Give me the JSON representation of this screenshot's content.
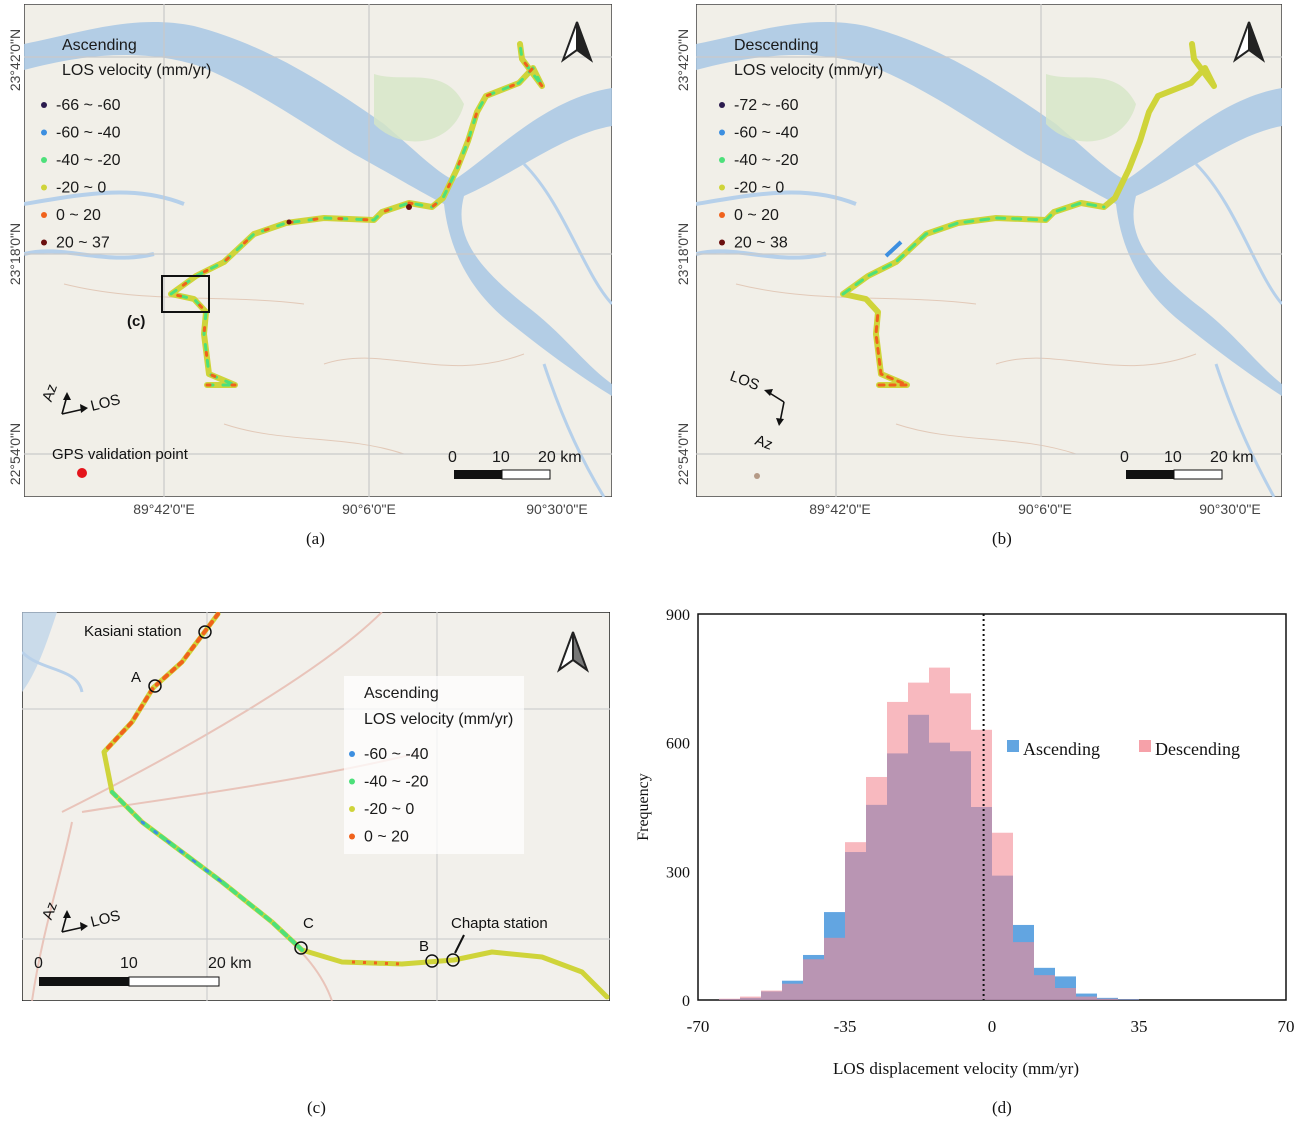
{
  "panel_a": {
    "caption": "(a)",
    "legend_title_1": "Ascending",
    "legend_title_2": "LOS velocity (mm/yr)",
    "legend": [
      {
        "label": "-66 ~ -60",
        "color": "#2b1b4e"
      },
      {
        "label": "-60 ~ -40",
        "color": "#3d8fe0"
      },
      {
        "label": "-40 ~ -20",
        "color": "#4de07a"
      },
      {
        "label": "-20 ~ 0",
        "color": "#cfd43a"
      },
      {
        "label": "0 ~ 20",
        "color": "#f0621c"
      },
      {
        "label": "20 ~ 37",
        "color": "#6b1010"
      }
    ],
    "lat_labels": [
      "23°42'0\"N",
      "23°18'0\"N",
      "22°54'0\"N"
    ],
    "lon_labels": [
      "89°42'0\"E",
      "90°6'0\"E",
      "90°30'0\"E"
    ],
    "inset_label": "(c)",
    "az_label": "Az",
    "los_label": "LOS",
    "gps_label": "GPS validation point",
    "scale": [
      "0",
      "10",
      "20 km"
    ]
  },
  "panel_b": {
    "caption": "(b)",
    "legend_title_1": "Descending",
    "legend_title_2": "LOS velocity (mm/yr)",
    "legend": [
      {
        "label": "-72 ~ -60",
        "color": "#2b1b4e"
      },
      {
        "label": "-60 ~ -40",
        "color": "#3d8fe0"
      },
      {
        "label": "-40 ~ -20",
        "color": "#4de07a"
      },
      {
        "label": "-20 ~ 0",
        "color": "#cfd43a"
      },
      {
        "label": "0 ~ 20",
        "color": "#f0621c"
      },
      {
        "label": "20 ~ 38",
        "color": "#6b1010"
      }
    ],
    "lat_labels": [
      "23°42'0\"N",
      "23°18'0\"N",
      "22°54'0\"N"
    ],
    "lon_labels": [
      "89°42'0\"E",
      "90°6'0\"E",
      "90°30'0\"E"
    ],
    "az_label": "Az",
    "los_label": "LOS",
    "scale": [
      "0",
      "10",
      "20 km"
    ]
  },
  "panel_c": {
    "caption": "(c)",
    "legend_title_1": "Ascending",
    "legend_title_2": "LOS velocity (mm/yr)",
    "legend": [
      {
        "label": "-60 ~ -40",
        "color": "#3d8fe0"
      },
      {
        "label": "-40 ~ -20",
        "color": "#4de07a"
      },
      {
        "label": "-20 ~  0",
        "color": "#cfd43a"
      },
      {
        "label": "0 ~ 20",
        "color": "#f0621c"
      }
    ],
    "kasiani_label": "Kasiani station",
    "chapta_label": "Chapta station",
    "point_a": "A",
    "point_b": "B",
    "point_c": "C",
    "az_label": "Az",
    "los_label": "LOS",
    "scale": [
      "0",
      "10",
      "20 km"
    ]
  },
  "panel_d": {
    "caption": "(d)",
    "ylabel": "Frequency",
    "xlabel": "LOS displacement  velocity  (mm/yr)",
    "series_1": "Ascending",
    "series_2": "Descending"
  },
  "chart_data": {
    "type": "bar",
    "xlabel": "LOS displacement  velocity  (mm/yr)",
    "ylabel": "Frequency",
    "xlim": [
      -70,
      70
    ],
    "ylim": [
      0,
      900
    ],
    "xticks": [
      "-70",
      "-35",
      "0",
      "35",
      "70"
    ],
    "yticks": [
      "0",
      "300",
      "600",
      "900"
    ],
    "bin_width": 5,
    "bin_starts": [
      -65,
      -60,
      -55,
      -50,
      -45,
      -40,
      -35,
      -30,
      -25,
      -20,
      -15,
      -10,
      -5,
      0,
      5,
      10,
      15,
      20,
      25,
      30
    ],
    "series": [
      {
        "name": "Ascending",
        "color": "#3b8fd9",
        "values": [
          2,
          5,
          20,
          45,
          105,
          205,
          345,
          455,
          575,
          665,
          600,
          580,
          450,
          290,
          175,
          75,
          55,
          15,
          5,
          2
        ]
      },
      {
        "name": "Descending",
        "color": "#f48a94",
        "values": [
          3,
          8,
          22,
          38,
          95,
          145,
          368,
          520,
          695,
          740,
          775,
          715,
          630,
          390,
          135,
          58,
          28,
          8,
          3,
          1
        ]
      }
    ],
    "reference_line_x": -2,
    "legend_position": "top-right"
  }
}
